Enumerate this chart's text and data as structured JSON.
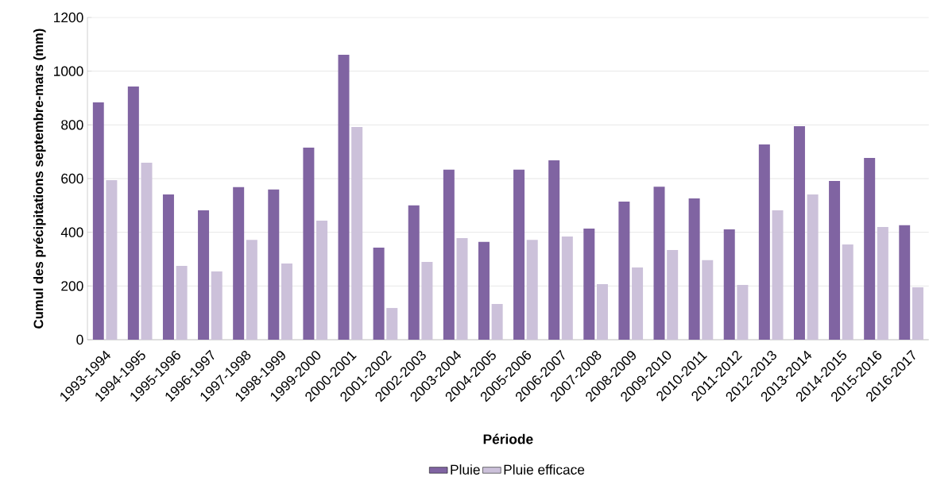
{
  "chart_data": {
    "type": "bar",
    "xlabel": "Période",
    "ylabel": "Cumul des précipitations septembre-mars (mm)",
    "categories": [
      "1993-1994",
      "1994-1995",
      "1995-1996",
      "1996-1997",
      "1997-1998",
      "1998-1999",
      "1999-2000",
      "2000-2001",
      "2001-2002",
      "2002-2003",
      "2003-2004",
      "2004-2005",
      "2005-2006",
      "2006-2007",
      "2007-2008",
      "2008-2009",
      "2009-2010",
      "2010-2011",
      "2011-2012",
      "2012-2013",
      "2013-2014",
      "2014-2015",
      "2015-2016",
      "2016-2017"
    ],
    "series": [
      {
        "name": "Pluie",
        "color": "#8064a2",
        "values": [
          884,
          943,
          541,
          482,
          568,
          559,
          715,
          1061,
          343,
          500,
          633,
          364,
          633,
          668,
          414,
          514,
          570,
          526,
          411,
          727,
          795,
          591,
          677,
          426
        ]
      },
      {
        "name": "Pluie efficace",
        "color": "#ccc1da",
        "values": [
          594,
          659,
          275,
          254,
          372,
          284,
          443,
          792,
          118,
          290,
          378,
          133,
          372,
          384,
          207,
          269,
          334,
          296,
          204,
          482,
          541,
          355,
          420,
          195
        ]
      }
    ],
    "ylim": [
      0,
      1200
    ],
    "yticks": [
      0,
      200,
      400,
      600,
      800,
      1000,
      1200
    ],
    "grid": "y",
    "legend": "bottom"
  }
}
